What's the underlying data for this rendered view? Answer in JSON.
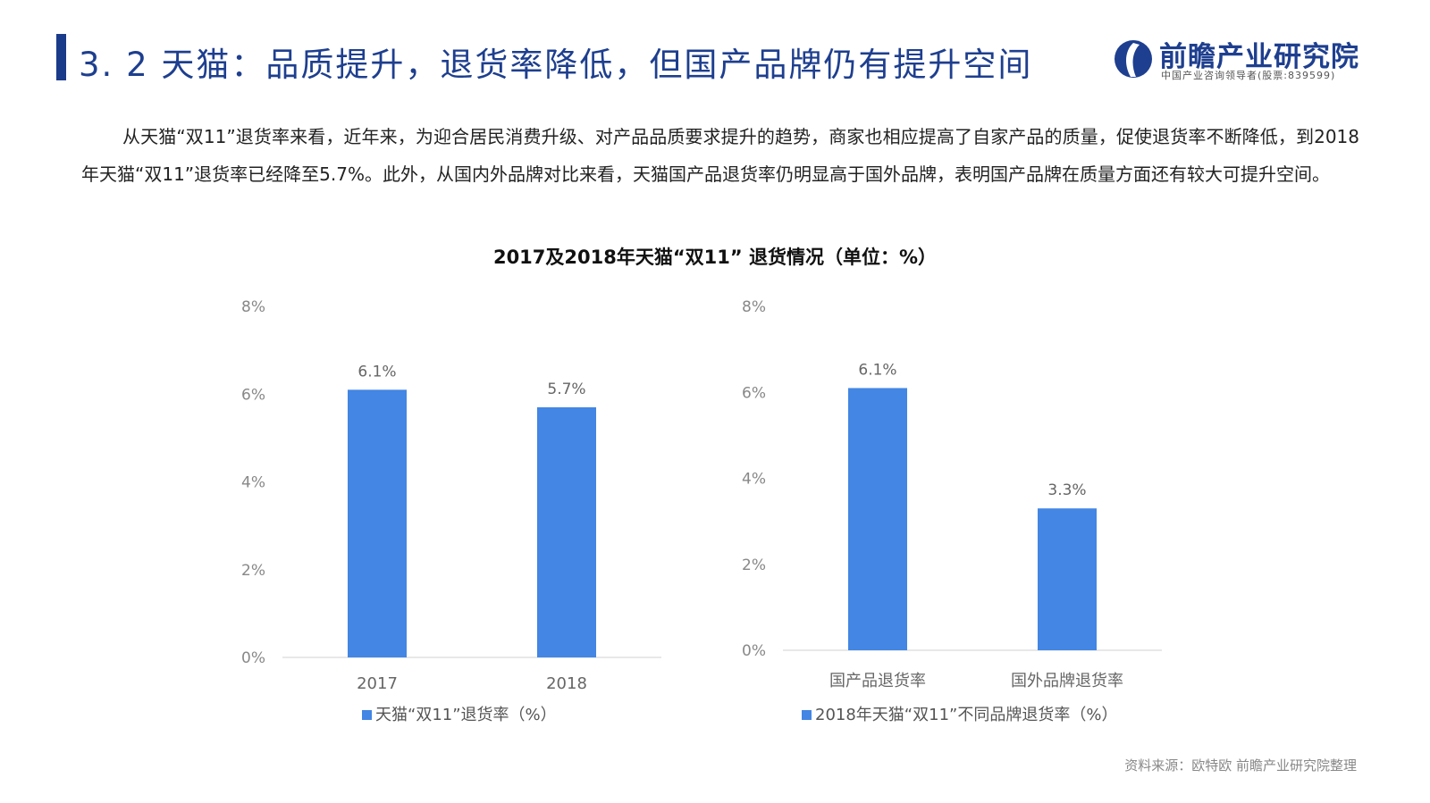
{
  "header": {
    "title": "3. 2  天猫：品质提升，退货率降低，但国产品牌仍有提升空间",
    "logo_name": "前瞻产业研究院",
    "logo_sub": "中国产业咨询领导者(股票:839599)"
  },
  "body_text": "从天猫“双11”退货率来看，近年来，为迎合居民消费升级、对产品品质要求提升的趋势，商家也相应提高了自家产品的质量，促使退货率不断降低，到2018年天猫“双11”退货率已经降至5.7%。此外，从国内外品牌对比来看，天猫国产品退货率仍明显高于国外品牌，表明国产品牌在质量方面还有较大可提升空间。",
  "chart_title": "2017及2018年天猫“双11” 退货情况（单位：%）",
  "source": "资料来源：欧特欧 前瞻产业研究院整理",
  "colors": {
    "bar": "#4386e3",
    "title": "#1e3f8f"
  },
  "chart_data": [
    {
      "type": "bar",
      "categories": [
        "2017",
        "2018"
      ],
      "series": [
        {
          "name": "天猫“双11”退货率（%）",
          "values": [
            6.1,
            5.7
          ]
        }
      ],
      "data_labels": [
        "6.1%",
        "5.7%"
      ],
      "yticks": [
        "0%",
        "2%",
        "4%",
        "6%",
        "8%"
      ],
      "ylim": [
        0,
        8
      ],
      "grid": false,
      "legend": "bottom"
    },
    {
      "type": "bar",
      "categories": [
        "国产品退货率",
        "国外品牌退货率"
      ],
      "series": [
        {
          "name": "2018年天猫“双11”不同品牌退货率（%）",
          "values": [
            6.1,
            3.3
          ]
        }
      ],
      "data_labels": [
        "6.1%",
        "3.3%"
      ],
      "yticks": [
        "0%",
        "2%",
        "4%",
        "6%",
        "8%"
      ],
      "ylim": [
        0,
        8
      ],
      "grid": false,
      "legend": "bottom"
    }
  ]
}
